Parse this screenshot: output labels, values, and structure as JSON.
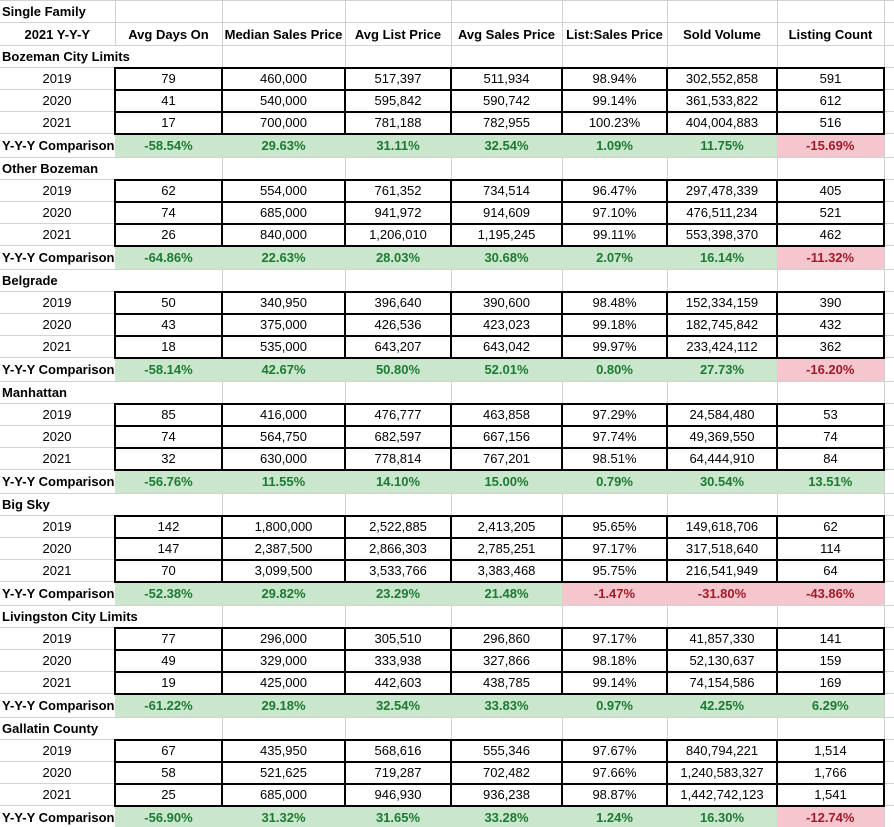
{
  "title": "Single Family",
  "header": {
    "row_label": "2021 Y-Y-Y",
    "columns": [
      "Avg Days On",
      "Median Sales Price",
      "Avg List Price",
      "Avg Sales Price",
      "List:Sales Price",
      "Sold Volume",
      "Listing Count"
    ]
  },
  "comparison_label": "Y-Y-Y Comparison",
  "colors": {
    "gridline": "#d2d2d2",
    "data_box_border": "#000000",
    "good_bg": "#cae6cd",
    "good_text": "#1e7a33",
    "bad_bg": "#f5c6cd",
    "bad_text": "#a01c28"
  },
  "sections": [
    {
      "name": "Bozeman City Limits",
      "rows": [
        {
          "year": "2019",
          "values": [
            "79",
            "460,000",
            "517,397",
            "511,934",
            "98.94%",
            "302,552,858",
            "591"
          ]
        },
        {
          "year": "2020",
          "values": [
            "41",
            "540,000",
            "595,842",
            "590,742",
            "99.14%",
            "361,533,822",
            "612"
          ]
        },
        {
          "year": "2021",
          "values": [
            "17",
            "700,000",
            "781,188",
            "782,955",
            "100.23%",
            "404,004,883",
            "516"
          ]
        }
      ],
      "comparison": {
        "values": [
          "-58.54%",
          "29.63%",
          "31.11%",
          "32.54%",
          "1.09%",
          "11.75%",
          "-15.69%"
        ],
        "status": [
          "good",
          "good",
          "good",
          "good",
          "good",
          "good",
          "bad"
        ]
      }
    },
    {
      "name": "Other Bozeman",
      "rows": [
        {
          "year": "2019",
          "values": [
            "62",
            "554,000",
            "761,352",
            "734,514",
            "96.47%",
            "297,478,339",
            "405"
          ]
        },
        {
          "year": "2020",
          "values": [
            "74",
            "685,000",
            "941,972",
            "914,609",
            "97.10%",
            "476,511,234",
            "521"
          ]
        },
        {
          "year": "2021",
          "values": [
            "26",
            "840,000",
            "1,206,010",
            "1,195,245",
            "99.11%",
            "553,398,370",
            "462"
          ]
        }
      ],
      "comparison": {
        "values": [
          "-64.86%",
          "22.63%",
          "28.03%",
          "30.68%",
          "2.07%",
          "16.14%",
          "-11.32%"
        ],
        "status": [
          "good",
          "good",
          "good",
          "good",
          "good",
          "good",
          "bad"
        ]
      }
    },
    {
      "name": "Belgrade",
      "rows": [
        {
          "year": "2019",
          "values": [
            "50",
            "340,950",
            "396,640",
            "390,600",
            "98.48%",
            "152,334,159",
            "390"
          ]
        },
        {
          "year": "2020",
          "values": [
            "43",
            "375,000",
            "426,536",
            "423,023",
            "99.18%",
            "182,745,842",
            "432"
          ]
        },
        {
          "year": "2021",
          "values": [
            "18",
            "535,000",
            "643,207",
            "643,042",
            "99.97%",
            "233,424,112",
            "362"
          ]
        }
      ],
      "comparison": {
        "values": [
          "-58.14%",
          "42.67%",
          "50.80%",
          "52.01%",
          "0.80%",
          "27.73%",
          "-16.20%"
        ],
        "status": [
          "good",
          "good",
          "good",
          "good",
          "good",
          "good",
          "bad"
        ]
      }
    },
    {
      "name": "Manhattan",
      "rows": [
        {
          "year": "2019",
          "values": [
            "85",
            "416,000",
            "476,777",
            "463,858",
            "97.29%",
            "24,584,480",
            "53"
          ]
        },
        {
          "year": "2020",
          "values": [
            "74",
            "564,750",
            "682,597",
            "667,156",
            "97.74%",
            "49,369,550",
            "74"
          ]
        },
        {
          "year": "2021",
          "values": [
            "32",
            "630,000",
            "778,814",
            "767,201",
            "98.51%",
            "64,444,910",
            "84"
          ]
        }
      ],
      "comparison": {
        "values": [
          "-56.76%",
          "11.55%",
          "14.10%",
          "15.00%",
          "0.79%",
          "30.54%",
          "13.51%"
        ],
        "status": [
          "good",
          "good",
          "good",
          "good",
          "good",
          "good",
          "good"
        ]
      }
    },
    {
      "name": "Big Sky",
      "rows": [
        {
          "year": "2019",
          "values": [
            "142",
            "1,800,000",
            "2,522,885",
            "2,413,205",
            "95.65%",
            "149,618,706",
            "62"
          ]
        },
        {
          "year": "2020",
          "values": [
            "147",
            "2,387,500",
            "2,866,303",
            "2,785,251",
            "97.17%",
            "317,518,640",
            "114"
          ]
        },
        {
          "year": "2021",
          "values": [
            "70",
            "3,099,500",
            "3,533,766",
            "3,383,468",
            "95.75%",
            "216,541,949",
            "64"
          ]
        }
      ],
      "comparison": {
        "values": [
          "-52.38%",
          "29.82%",
          "23.29%",
          "21.48%",
          "-1.47%",
          "-31.80%",
          "-43.86%"
        ],
        "status": [
          "good",
          "good",
          "good",
          "good",
          "bad",
          "bad",
          "bad"
        ]
      }
    },
    {
      "name": "Livingston City Limits",
      "rows": [
        {
          "year": "2019",
          "values": [
            "77",
            "296,000",
            "305,510",
            "296,860",
            "97.17%",
            "41,857,330",
            "141"
          ]
        },
        {
          "year": "2020",
          "values": [
            "49",
            "329,000",
            "333,938",
            "327,866",
            "98.18%",
            "52,130,637",
            "159"
          ]
        },
        {
          "year": "2021",
          "values": [
            "19",
            "425,000",
            "442,603",
            "438,785",
            "99.14%",
            "74,154,586",
            "169"
          ]
        }
      ],
      "comparison": {
        "values": [
          "-61.22%",
          "29.18%",
          "32.54%",
          "33.83%",
          "0.97%",
          "42.25%",
          "6.29%"
        ],
        "status": [
          "good",
          "good",
          "good",
          "good",
          "good",
          "good",
          "good"
        ]
      }
    },
    {
      "name": "Gallatin County",
      "rows": [
        {
          "year": "2019",
          "values": [
            "67",
            "435,950",
            "568,616",
            "555,346",
            "97.67%",
            "840,794,221",
            "1,514"
          ]
        },
        {
          "year": "2020",
          "values": [
            "58",
            "521,625",
            "719,287",
            "702,482",
            "97.66%",
            "1,240,583,327",
            "1,766"
          ]
        },
        {
          "year": "2021",
          "values": [
            "25",
            "685,000",
            "946,930",
            "936,238",
            "98.87%",
            "1,442,742,123",
            "1,541"
          ]
        }
      ],
      "comparison": {
        "values": [
          "-56.90%",
          "31.32%",
          "31.65%",
          "33.28%",
          "1.24%",
          "16.30%",
          "-12.74%"
        ],
        "status": [
          "good",
          "good",
          "good",
          "good",
          "good",
          "good",
          "bad"
        ]
      }
    }
  ]
}
